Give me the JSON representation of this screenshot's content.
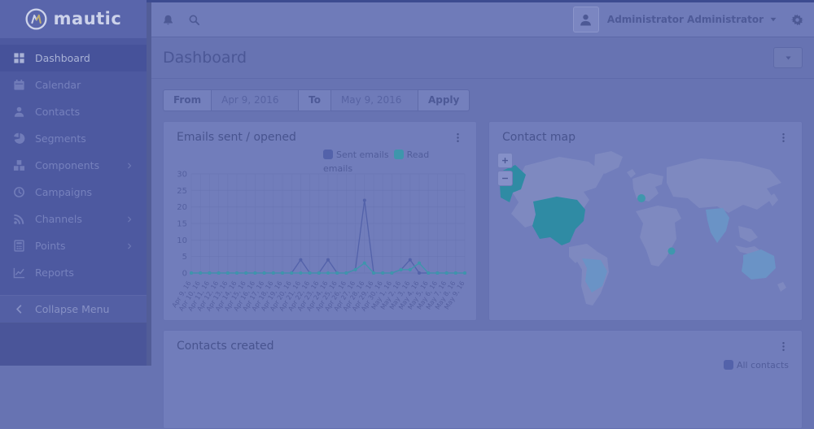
{
  "topbar": {
    "user_name": "Administrator Administrator",
    "icons": [
      "bell-icon",
      "search-icon",
      "user-caret-icon",
      "gear-icon"
    ]
  },
  "sidebar": {
    "logo_text": "mautic",
    "items": [
      {
        "label": "Dashboard",
        "icon": "grid-icon",
        "active": true,
        "submenu": false
      },
      {
        "label": "Calendar",
        "icon": "calendar-icon",
        "active": false,
        "submenu": false
      },
      {
        "label": "Contacts",
        "icon": "user-icon",
        "active": false,
        "submenu": false
      },
      {
        "label": "Segments",
        "icon": "pie-icon",
        "active": false,
        "submenu": false
      },
      {
        "label": "Components",
        "icon": "blocks-icon",
        "active": false,
        "submenu": true
      },
      {
        "label": "Campaigns",
        "icon": "clock-icon",
        "active": false,
        "submenu": false
      },
      {
        "label": "Channels",
        "icon": "rss-icon",
        "active": false,
        "submenu": true
      },
      {
        "label": "Points",
        "icon": "calculator-icon",
        "active": false,
        "submenu": true
      },
      {
        "label": "Reports",
        "icon": "line-chart-icon",
        "active": false,
        "submenu": false
      }
    ],
    "collapse_label": "Collapse Menu"
  },
  "page": {
    "title": "Dashboard"
  },
  "date_filter": {
    "from_label": "From",
    "from_value": "Apr 9, 2016",
    "to_label": "To",
    "to_value": "May 9, 2016",
    "apply_label": "Apply"
  },
  "panels": {
    "emails_title": "Emails sent / opened",
    "map_title": "Contact map",
    "map_zoom_in": "+",
    "map_zoom_out": "−",
    "contacts_title": "Contacts created"
  },
  "chart_data": [
    {
      "type": "line",
      "title": "Emails sent / opened",
      "categories": [
        "Apr 9, 16",
        "Apr 10, 16",
        "Apr 11, 16",
        "Apr 12, 16",
        "Apr 13, 16",
        "Apr 14, 16",
        "Apr 15, 16",
        "Apr 16, 16",
        "Apr 17, 16",
        "Apr 18, 16",
        "Apr 19, 16",
        "Apr 20, 16",
        "Apr 21, 16",
        "Apr 22, 16",
        "Apr 23, 16",
        "Apr 24, 16",
        "Apr 25, 16",
        "Apr 26, 16",
        "Apr 27, 16",
        "Apr 28, 16",
        "Apr 29, 16",
        "Apr 30, 16",
        "May 1, 16",
        "May 2, 16",
        "May 3, 16",
        "May 4, 16",
        "May 5, 16",
        "May 6, 16",
        "May 7, 16",
        "May 8, 16",
        "May 9, 16"
      ],
      "series": [
        {
          "name": "Sent emails",
          "color": "#5362aa",
          "values": [
            0,
            0,
            0,
            0,
            0,
            0,
            0,
            0,
            0,
            0,
            0,
            0,
            4,
            0,
            0,
            4,
            0,
            0,
            1,
            22,
            0,
            0,
            0,
            1,
            4,
            0,
            0,
            0,
            0,
            0,
            0
          ]
        },
        {
          "name": "Read emails",
          "color": "#3e96ac",
          "values": [
            0,
            0,
            0,
            0,
            0,
            0,
            0,
            0,
            0,
            0,
            0,
            0,
            0,
            0,
            0,
            0,
            0,
            0,
            1,
            3,
            0,
            0,
            0,
            1,
            1,
            3,
            0,
            0,
            0,
            0,
            0
          ]
        }
      ],
      "ylim": [
        0,
        30
      ],
      "yticks": [
        0,
        5,
        10,
        15,
        20,
        25,
        30
      ],
      "grid": true,
      "legend_position": "top-right"
    },
    {
      "type": "line",
      "title": "Contacts created",
      "series": [
        {
          "name": "All contacts",
          "color": "#5362aa",
          "values": []
        }
      ],
      "legend_position": "top-right",
      "note_visible_portion": "only panel header and legend visible at screenshot edge"
    }
  ],
  "map": {
    "highlighted_dark": [
      "United States",
      "Alaska"
    ],
    "highlighted_medium": [
      "Brazil",
      "India",
      "Australia"
    ],
    "highlighted_spots": [
      "France",
      "Uganda"
    ]
  },
  "colors": {
    "accent_teal": "#3e96ac",
    "accent_purple": "#5362aa",
    "map_land": "#7e89c0",
    "map_highlight_dark": "#2f8ba4",
    "map_highlight_medium": "#6a93c6",
    "sidebar_bg": "#4d59a0",
    "panel_bg": "#717dbb",
    "content_bg": "#6773b2"
  }
}
